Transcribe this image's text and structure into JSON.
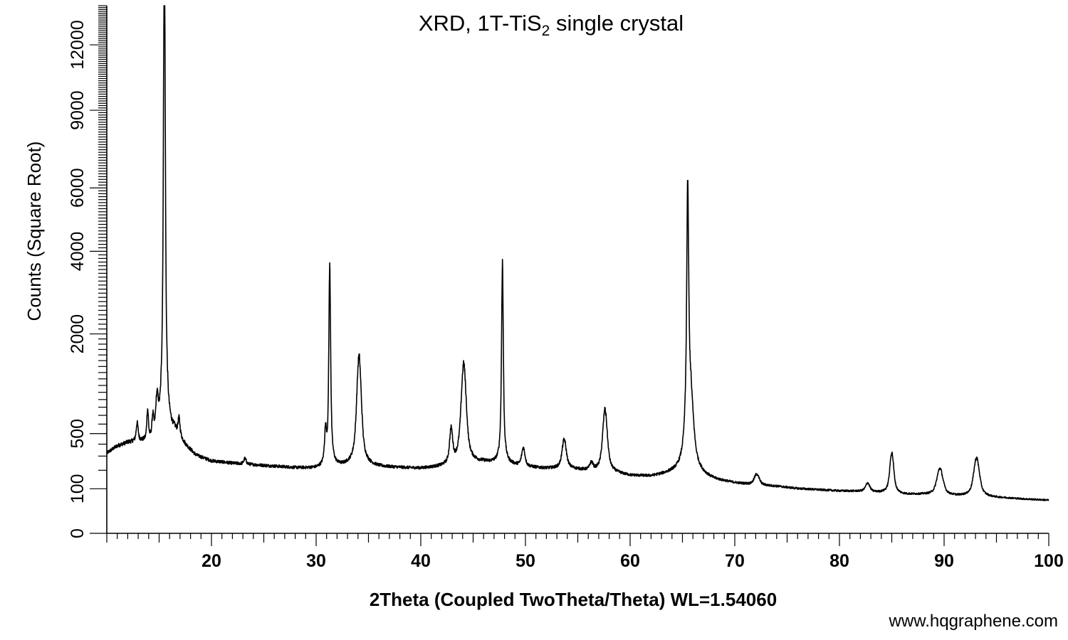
{
  "chart_data": {
    "type": "line",
    "title": {
      "prefix": "XRD, 1T-TiS",
      "subscript": "2",
      "suffix": " single crystal"
    },
    "xlabel": "2Theta (Coupled TwoTheta/Theta) WL=1.54060",
    "ylabel": "Counts (Square Root)",
    "y_scale": "sqrt",
    "xlim": [
      10,
      100
    ],
    "ylim": [
      0,
      14000
    ],
    "x_ticks": [
      20,
      30,
      40,
      50,
      60,
      70,
      80,
      90,
      100
    ],
    "y_ticks": [
      0,
      100,
      500,
      2000,
      4000,
      6000,
      9000,
      12000
    ],
    "grid": false,
    "legend": "none",
    "line_color": "#000000",
    "baseline_points": [
      [
        10.0,
        320
      ],
      [
        11.0,
        380
      ],
      [
        12.0,
        410
      ],
      [
        13.0,
        420
      ],
      [
        14.0,
        400
      ],
      [
        14.8,
        420
      ],
      [
        16.5,
        500
      ],
      [
        17.5,
        380
      ],
      [
        18.5,
        300
      ],
      [
        20.0,
        260
      ],
      [
        22.0,
        245
      ],
      [
        24.0,
        235
      ],
      [
        26.0,
        225
      ],
      [
        28.0,
        215
      ],
      [
        30.0,
        210
      ],
      [
        32.0,
        220
      ],
      [
        34.0,
        230
      ],
      [
        36.0,
        220
      ],
      [
        38.0,
        215
      ],
      [
        40.0,
        210
      ],
      [
        42.0,
        220
      ],
      [
        44.0,
        240
      ],
      [
        46.0,
        250
      ],
      [
        48.0,
        240
      ],
      [
        50.0,
        220
      ],
      [
        52.0,
        210
      ],
      [
        54.0,
        210
      ],
      [
        56.0,
        195
      ],
      [
        58.0,
        185
      ],
      [
        60.0,
        165
      ],
      [
        62.0,
        160
      ],
      [
        64.0,
        175
      ],
      [
        66.0,
        170
      ],
      [
        68.0,
        140
      ],
      [
        70.0,
        125
      ],
      [
        72.0,
        115
      ],
      [
        74.0,
        110
      ],
      [
        76.0,
        100
      ],
      [
        78.0,
        95
      ],
      [
        80.0,
        90
      ],
      [
        82.0,
        88
      ],
      [
        84.0,
        82
      ],
      [
        86.0,
        75
      ],
      [
        88.0,
        75
      ],
      [
        90.0,
        70
      ],
      [
        92.0,
        68
      ],
      [
        94.0,
        65
      ],
      [
        96.0,
        62
      ],
      [
        98.0,
        58
      ],
      [
        100.0,
        55
      ]
    ],
    "peaks": [
      {
        "x": 12.9,
        "height": 180,
        "width": 0.12
      },
      {
        "x": 13.9,
        "height": 330,
        "width": 0.1
      },
      {
        "x": 14.4,
        "height": 220,
        "width": 0.1
      },
      {
        "x": 14.8,
        "height": 420,
        "width": 0.15
      },
      {
        "x": 15.5,
        "height": 18000,
        "width": 0.09
      },
      {
        "x": 16.9,
        "height": 180,
        "width": 0.12
      },
      {
        "x": 23.2,
        "height": 40,
        "width": 0.15
      },
      {
        "x": 30.9,
        "height": 280,
        "width": 0.12
      },
      {
        "x": 31.3,
        "height": 3350,
        "width": 0.09
      },
      {
        "x": 34.1,
        "height": 1350,
        "width": 0.25
      },
      {
        "x": 42.9,
        "height": 300,
        "width": 0.18
      },
      {
        "x": 44.1,
        "height": 1200,
        "width": 0.28
      },
      {
        "x": 47.8,
        "height": 3450,
        "width": 0.09
      },
      {
        "x": 49.8,
        "height": 140,
        "width": 0.2
      },
      {
        "x": 53.7,
        "height": 230,
        "width": 0.25
      },
      {
        "x": 56.3,
        "height": 50,
        "width": 0.2
      },
      {
        "x": 57.6,
        "height": 580,
        "width": 0.26
      },
      {
        "x": 65.5,
        "height": 5400,
        "width": 0.1
      },
      {
        "x": 65.7,
        "height": 900,
        "width": 0.35
      },
      {
        "x": 72.1,
        "height": 60,
        "width": 0.3
      },
      {
        "x": 82.7,
        "height": 40,
        "width": 0.25
      },
      {
        "x": 85.0,
        "height": 250,
        "width": 0.22
      },
      {
        "x": 89.6,
        "height": 140,
        "width": 0.35
      },
      {
        "x": 93.1,
        "height": 220,
        "width": 0.32
      }
    ],
    "noise_amplitude": 0.045
  },
  "watermark": "www.hqgraphene.com"
}
